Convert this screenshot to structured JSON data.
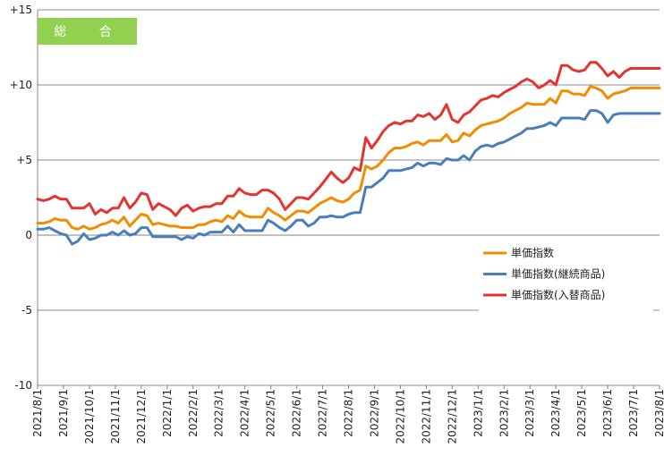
{
  "chart_data": {
    "type": "line",
    "title": "総 合",
    "title_bg_color": "#92d050",
    "ylim": [
      -10,
      15
    ],
    "y_ticks": [
      15,
      10,
      5,
      0,
      -5,
      -10
    ],
    "y_tick_labels": [
      "+15",
      "+10",
      "+5",
      "0",
      "-5",
      "-10"
    ],
    "grid": "horizontal",
    "x_tick_labels": [
      "2021/8/1",
      "2021/9/1",
      "2021/10/1",
      "2021/11/1",
      "2021/12/1",
      "2022/1/1",
      "2022/2/1",
      "2022/3/1",
      "2022/4/1",
      "2022/5/1",
      "2022/6/1",
      "2022/7/1",
      "2022/8/1",
      "2022/9/1",
      "2022/10/1",
      "2022/11/1",
      "2022/12/1",
      "2023/1/1",
      "2023/2/1",
      "2023/3/1",
      "2023/4/1",
      "2023/5/1",
      "2023/6/1",
      "2023/7/1",
      "2023/8/1"
    ],
    "legend_position": "right-middle",
    "x_weeks": [
      0,
      1,
      2,
      3,
      4,
      5,
      6,
      7,
      8,
      9,
      10,
      11,
      12,
      13,
      14,
      15,
      16,
      17,
      18,
      19,
      20,
      21,
      22,
      23,
      24,
      25,
      26,
      27,
      28,
      29,
      30,
      31,
      32,
      33,
      34,
      35,
      36,
      37,
      38,
      39,
      40,
      41,
      42,
      43,
      44,
      45,
      46,
      47,
      48,
      49,
      50,
      51,
      52,
      53,
      54,
      55,
      56,
      57,
      58,
      59,
      60,
      61,
      62,
      63,
      64,
      65,
      66,
      67,
      68,
      69,
      70,
      71,
      72,
      73,
      74,
      75,
      76,
      77,
      78,
      79,
      80,
      81,
      82,
      83,
      84,
      85,
      86,
      87,
      88,
      89,
      90,
      91,
      92,
      93,
      94,
      95,
      96,
      97,
      98,
      99,
      100,
      101,
      102,
      103,
      104,
      105,
      106,
      107,
      108
    ],
    "series": [
      {
        "name": "単価指数",
        "color": "#f28c00",
        "values": [
          0.8,
          0.8,
          0.9,
          1.1,
          1.0,
          1.0,
          0.5,
          0.4,
          0.6,
          0.4,
          0.5,
          0.7,
          0.8,
          1.0,
          0.8,
          1.2,
          0.6,
          1.0,
          1.4,
          1.3,
          0.7,
          0.8,
          0.7,
          0.6,
          0.6,
          0.5,
          0.5,
          0.5,
          0.7,
          0.7,
          0.9,
          1.0,
          0.9,
          1.3,
          1.1,
          1.6,
          1.3,
          1.2,
          1.2,
          1.2,
          1.8,
          1.5,
          1.3,
          1.0,
          1.3,
          1.6,
          1.6,
          1.5,
          1.8,
          2.1,
          2.3,
          2.5,
          2.3,
          2.2,
          2.4,
          2.8,
          3.0,
          4.6,
          4.4,
          4.6,
          5.0,
          5.5,
          5.8,
          5.8,
          5.9,
          6.1,
          6.2,
          6.0,
          6.3,
          6.3,
          6.3,
          6.7,
          6.2,
          6.3,
          6.8,
          6.6,
          7.0,
          7.3,
          7.4,
          7.5,
          7.6,
          7.8,
          8.1,
          8.3,
          8.5,
          8.8,
          8.7,
          8.7,
          8.7,
          9.1,
          8.8,
          9.6,
          9.6,
          9.4,
          9.4,
          9.3,
          9.9,
          9.8,
          9.6,
          9.1,
          9.4,
          9.5,
          9.6,
          9.8,
          9.8,
          9.8,
          9.8,
          9.8,
          9.8
        ]
      },
      {
        "name": "単価指数(継続商品)",
        "color": "#4a7ebb",
        "values": [
          0.4,
          0.4,
          0.5,
          0.3,
          0.1,
          0.0,
          -0.6,
          -0.4,
          0.1,
          -0.3,
          -0.2,
          0.0,
          0.0,
          0.2,
          0.0,
          0.3,
          0.0,
          0.1,
          0.5,
          0.5,
          -0.1,
          -0.1,
          -0.1,
          -0.1,
          -0.1,
          -0.3,
          -0.1,
          -0.2,
          0.1,
          0.0,
          0.2,
          0.2,
          0.2,
          0.6,
          0.2,
          0.7,
          0.3,
          0.3,
          0.3,
          0.3,
          1.0,
          0.8,
          0.5,
          0.3,
          0.6,
          1.0,
          1.0,
          0.6,
          0.8,
          1.2,
          1.2,
          1.3,
          1.2,
          1.2,
          1.4,
          1.5,
          1.5,
          3.2,
          3.2,
          3.5,
          3.8,
          4.3,
          4.3,
          4.3,
          4.4,
          4.5,
          4.8,
          4.6,
          4.8,
          4.8,
          4.7,
          5.1,
          5.0,
          5.0,
          5.3,
          5.0,
          5.6,
          5.9,
          6.0,
          5.9,
          6.1,
          6.2,
          6.4,
          6.6,
          6.8,
          7.1,
          7.1,
          7.2,
          7.3,
          7.5,
          7.3,
          7.8,
          7.8,
          7.8,
          7.8,
          7.7,
          8.3,
          8.3,
          8.1,
          7.5,
          8.0,
          8.1,
          8.1,
          8.1,
          8.1,
          8.1,
          8.1,
          8.1,
          8.1
        ]
      },
      {
        "name": "単価指数(入替商品)",
        "color": "#e3342f",
        "values": [
          2.4,
          2.3,
          2.4,
          2.6,
          2.4,
          2.4,
          1.8,
          1.8,
          1.8,
          2.1,
          1.4,
          1.7,
          1.5,
          1.8,
          1.8,
          2.5,
          1.8,
          2.2,
          2.8,
          2.7,
          1.7,
          2.1,
          1.9,
          1.7,
          1.3,
          1.8,
          2.0,
          1.6,
          1.8,
          1.9,
          1.9,
          2.1,
          2.1,
          2.6,
          2.6,
          3.1,
          2.8,
          2.7,
          2.7,
          3.0,
          3.0,
          2.8,
          2.4,
          1.7,
          2.1,
          2.5,
          2.5,
          2.4,
          2.8,
          3.2,
          3.7,
          4.2,
          3.8,
          3.5,
          3.8,
          4.5,
          4.3,
          6.5,
          5.8,
          6.3,
          6.9,
          7.3,
          7.5,
          7.4,
          7.6,
          7.6,
          8.0,
          7.9,
          8.1,
          7.7,
          8.0,
          8.7,
          7.7,
          7.5,
          8.0,
          8.2,
          8.6,
          9.0,
          9.1,
          9.3,
          9.2,
          9.5,
          9.7,
          9.9,
          10.2,
          10.4,
          10.2,
          9.8,
          10.0,
          10.3,
          10.0,
          11.3,
          11.3,
          11.0,
          10.9,
          11.0,
          11.5,
          11.5,
          11.1,
          10.6,
          10.9,
          10.5,
          10.9,
          11.1,
          11.1,
          11.1,
          11.1,
          11.1,
          11.1
        ]
      }
    ]
  }
}
